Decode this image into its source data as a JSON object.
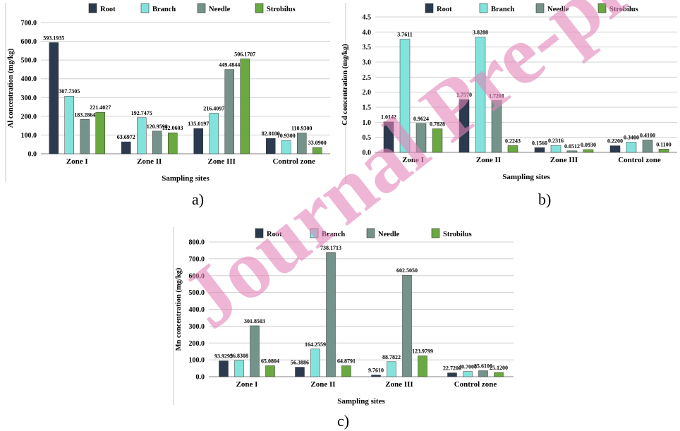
{
  "colors": {
    "Root": "#2b3a4e",
    "Branch": "#82e3dc",
    "Needle": "#74938a",
    "Strobilus": "#6aa842"
  },
  "watermark": {
    "text": "Journal Pre-proof manuscript",
    "color": "#e385b8"
  },
  "chart_data": [
    {
      "id": "a",
      "panel_label": "a)",
      "type": "bar",
      "xlabel": "Sampling sites",
      "ylabel": "Al concentration (mg/kg)",
      "ylim": [
        0,
        700
      ],
      "yticks": [
        0,
        100,
        200,
        300,
        400,
        500,
        600,
        700
      ],
      "tick_decimals": 1,
      "categories": [
        "Zone I",
        "Zone II",
        "Zone III",
        "Control zone"
      ],
      "legend": "top",
      "series": [
        {
          "name": "Root",
          "values": [
            593.1935,
            63.6972,
            135.0197,
            82.01
          ],
          "labels": [
            "593.1935",
            "63.6972",
            "135.0197",
            "82.0100"
          ]
        },
        {
          "name": "Branch",
          "values": [
            307.7305,
            192.7475,
            216.4097,
            70.93
          ],
          "labels": [
            "307.7305",
            "192.7475",
            "216.4097",
            "70.9300"
          ]
        },
        {
          "name": "Needle",
          "values": [
            183.2864,
            120.9598,
            449.4844,
            110.93
          ],
          "labels": [
            "183.2864",
            "120.9598",
            "449.4844",
            "110.9300"
          ]
        },
        {
          "name": "Strobilus",
          "values": [
            221.4027,
            112.0603,
            506.1707,
            33.09
          ],
          "labels": [
            "221.4027",
            "112.0603",
            "506.1707",
            "33.0900"
          ]
        }
      ]
    },
    {
      "id": "b",
      "panel_label": "b)",
      "type": "bar",
      "xlabel": "Sampling sites",
      "ylabel": "Cd concentration (mg/kg)",
      "ylim": [
        0,
        4.5
      ],
      "yticks": [
        0,
        0.5,
        1,
        1.5,
        2,
        2.5,
        3,
        3.5,
        4,
        4.5
      ],
      "tick_decimals": 1,
      "categories": [
        "Zone I",
        "Zone II",
        "Zone III",
        "Control zone"
      ],
      "legend": "top",
      "series": [
        {
          "name": "Root",
          "values": [
            1.0142,
            1.757,
            0.156,
            0.22
          ],
          "labels": [
            "1.0142",
            "1.7570",
            "0.1560",
            "0.2200"
          ]
        },
        {
          "name": "Branch",
          "values": [
            3.7611,
            3.8288,
            0.2316,
            0.34
          ],
          "labels": [
            "3.7611",
            "3.8288",
            "0.2316",
            "0.3400"
          ]
        },
        {
          "name": "Needle",
          "values": [
            0.9624,
            1.7201,
            0.0512,
            0.41
          ],
          "labels": [
            "0.9624",
            "1.7201",
            "0.0512",
            "0.4100"
          ]
        },
        {
          "name": "Strobilus",
          "values": [
            0.7828,
            0.2243,
            0.093,
            0.11
          ],
          "labels": [
            "0.7828",
            "0.2243",
            "0.0930",
            "0.1100"
          ]
        }
      ]
    },
    {
      "id": "c",
      "panel_label": "c)",
      "type": "bar",
      "xlabel": "Sampling sites",
      "ylabel": "Mn concentration (mg/kg)",
      "ylim": [
        0,
        800
      ],
      "yticks": [
        0,
        100,
        200,
        300,
        400,
        500,
        600,
        700,
        800
      ],
      "tick_decimals": 1,
      "categories": [
        "Zone I",
        "Zone II",
        "Zone III",
        "Control zone"
      ],
      "legend": "top",
      "series": [
        {
          "name": "Root",
          "values": [
            93.9293,
            56.3886,
            9.761,
            22.72
          ],
          "labels": [
            "93.9293",
            "56.3886",
            "9.7610",
            "22.7200"
          ]
        },
        {
          "name": "Branch",
          "values": [
            96.8308,
            164.2559,
            88.7822,
            30.7
          ],
          "labels": [
            "96.8308",
            "164.2559",
            "88.7822",
            "30.7000"
          ]
        },
        {
          "name": "Needle",
          "values": [
            301.8503,
            738.1713,
            602.505,
            35.61
          ],
          "labels": [
            "301.8503",
            "738.1713",
            "602.5050",
            "35.6100"
          ]
        },
        {
          "name": "Strobilus",
          "values": [
            65.0804,
            64.8791,
            123.9799,
            25.12
          ],
          "labels": [
            "65.0804",
            "64.8791",
            "123.9799",
            "25.1200"
          ]
        }
      ]
    }
  ]
}
